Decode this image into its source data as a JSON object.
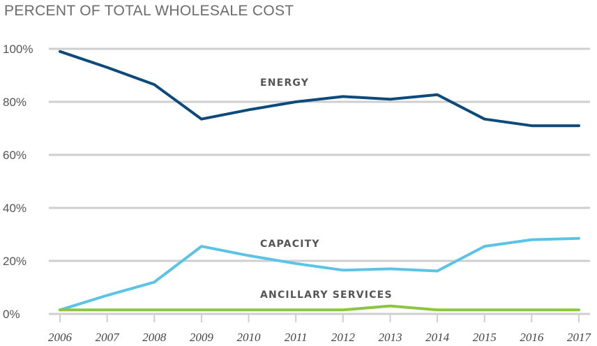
{
  "chart_data": {
    "type": "line",
    "title": "PERCENT OF TOTAL WHOLESALE COST",
    "xlabel": "",
    "ylabel": "",
    "x": [
      "2006",
      "2007",
      "2008",
      "2009",
      "2010",
      "2011",
      "2012",
      "2013",
      "2014",
      "2015",
      "2016",
      "2017"
    ],
    "ylim": [
      0,
      100
    ],
    "yticks": [
      0,
      20,
      40,
      60,
      80,
      100
    ],
    "ytick_labels": [
      "0%",
      "20%",
      "40%",
      "60%",
      "80%",
      "100%"
    ],
    "grid": true,
    "series": [
      {
        "name": "ENERGY",
        "color": "#0d4a7c",
        "values": [
          99,
          93,
          86.5,
          73.5,
          77,
          80,
          82,
          81,
          82.7,
          73.5,
          71,
          71
        ]
      },
      {
        "name": "CAPACITY",
        "color": "#5bc4e6",
        "values": [
          1.5,
          7,
          12,
          25.5,
          22,
          19,
          16.5,
          17,
          16.2,
          25.5,
          28,
          28.5
        ]
      },
      {
        "name": "ANCILLARY SERVICES",
        "color": "#8cc63f",
        "values": [
          1.5,
          1.5,
          1.5,
          1.5,
          1.5,
          1.5,
          1.5,
          3,
          1.5,
          1.5,
          1.5,
          1.5
        ]
      }
    ]
  }
}
